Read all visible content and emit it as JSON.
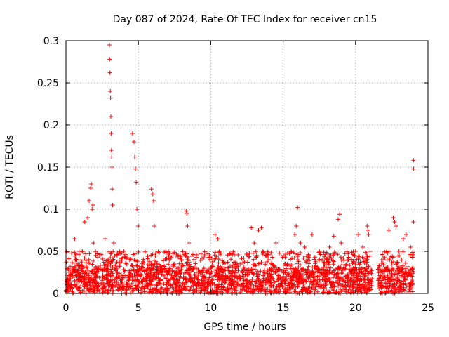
{
  "chart_data": {
    "type": "scatter",
    "title": "Day 087 of 2024, Rate Of TEC Index for receiver cn15",
    "xlabel": "GPS time / hours",
    "ylabel": "ROTI / TECUs",
    "xlim": [
      0,
      25
    ],
    "ylim": [
      0,
      0.3
    ],
    "xticks": [
      0,
      5,
      10,
      15,
      20,
      25
    ],
    "yticks": [
      0,
      0.05,
      0.1,
      0.15,
      0.2,
      0.25,
      0.3
    ],
    "xtick_labels": [
      "0",
      "5",
      "10",
      "15",
      "20",
      "25"
    ],
    "ytick_labels": [
      "0",
      "0.05",
      "0.1",
      "0.15",
      "0.2",
      "0.25",
      "0.3"
    ],
    "grid": true,
    "marker": "+",
    "color": "#ff0000",
    "series": [
      {
        "name": "ROTI",
        "x": [
          0.05,
          0.1,
          0.3,
          0.5,
          0.6,
          0.7,
          0.9,
          1.1,
          1.3,
          1.5,
          1.6,
          1.7,
          1.75,
          1.8,
          1.85,
          1.9,
          2.1,
          2.5,
          2.7,
          2.9,
          3.0,
          3.02,
          3.04,
          3.06,
          3.08,
          3.1,
          3.12,
          3.14,
          3.16,
          3.18,
          3.2,
          3.22,
          3.3,
          3.5,
          3.7,
          4.0,
          4.2,
          4.4,
          4.6,
          4.7,
          4.75,
          4.8,
          4.85,
          4.9,
          5.0,
          5.2,
          5.6,
          5.9,
          6.0,
          6.05,
          6.1,
          6.5,
          7.0,
          7.5,
          8.0,
          8.3,
          8.35,
          8.4,
          8.5,
          9.0,
          9.5,
          10.0,
          10.3,
          10.5,
          10.6,
          11.0,
          11.5,
          12.0,
          12.5,
          12.8,
          13.0,
          13.3,
          13.5,
          13.6,
          14.0,
          14.5,
          15.0,
          15.3,
          15.5,
          15.8,
          15.9,
          16.0,
          16.2,
          16.5,
          17.0,
          17.5,
          18.0,
          18.2,
          18.5,
          18.8,
          18.9,
          19.0,
          19.5,
          20.0,
          20.2,
          20.5,
          20.8,
          20.85,
          20.9,
          21.0,
          21.6,
          22.0,
          22.3,
          22.6,
          22.7,
          22.8,
          23.0,
          23.3,
          23.5,
          23.8,
          24.0,
          24.0,
          24.0
        ],
        "y": [
          0.05,
          0.01,
          0.02,
          0.03,
          0.065,
          0.04,
          0.05,
          0.03,
          0.085,
          0.09,
          0.11,
          0.125,
          0.13,
          0.1,
          0.105,
          0.06,
          0.03,
          0.02,
          0.065,
          0.04,
          0.295,
          0.278,
          0.262,
          0.24,
          0.232,
          0.21,
          0.19,
          0.17,
          0.162,
          0.15,
          0.124,
          0.105,
          0.06,
          0.03,
          0.02,
          0.05,
          0.035,
          0.04,
          0.19,
          0.18,
          0.162,
          0.148,
          0.132,
          0.1,
          0.08,
          0.03,
          0.02,
          0.124,
          0.118,
          0.11,
          0.08,
          0.03,
          0.025,
          0.035,
          0.04,
          0.098,
          0.095,
          0.08,
          0.06,
          0.025,
          0.02,
          0.03,
          0.07,
          0.065,
          0.05,
          0.02,
          0.015,
          0.02,
          0.025,
          0.078,
          0.06,
          0.075,
          0.078,
          0.05,
          0.04,
          0.06,
          0.045,
          0.035,
          0.05,
          0.07,
          0.08,
          0.102,
          0.06,
          0.055,
          0.07,
          0.05,
          0.04,
          0.055,
          0.068,
          0.088,
          0.094,
          0.06,
          0.04,
          0.05,
          0.07,
          0.055,
          0.08,
          0.075,
          0.07,
          0.05,
          0.03,
          0.02,
          0.075,
          0.09,
          0.085,
          0.08,
          0.05,
          0.065,
          0.07,
          0.055,
          0.158,
          0.148,
          0.085
        ],
        "dense_band": {
          "x_from": 0,
          "x_to": 24,
          "gap_from": 21.2,
          "gap_to": 21.55,
          "y_from": 0.0,
          "y_to": 0.03,
          "y_spread_to": 0.05
        }
      }
    ]
  }
}
